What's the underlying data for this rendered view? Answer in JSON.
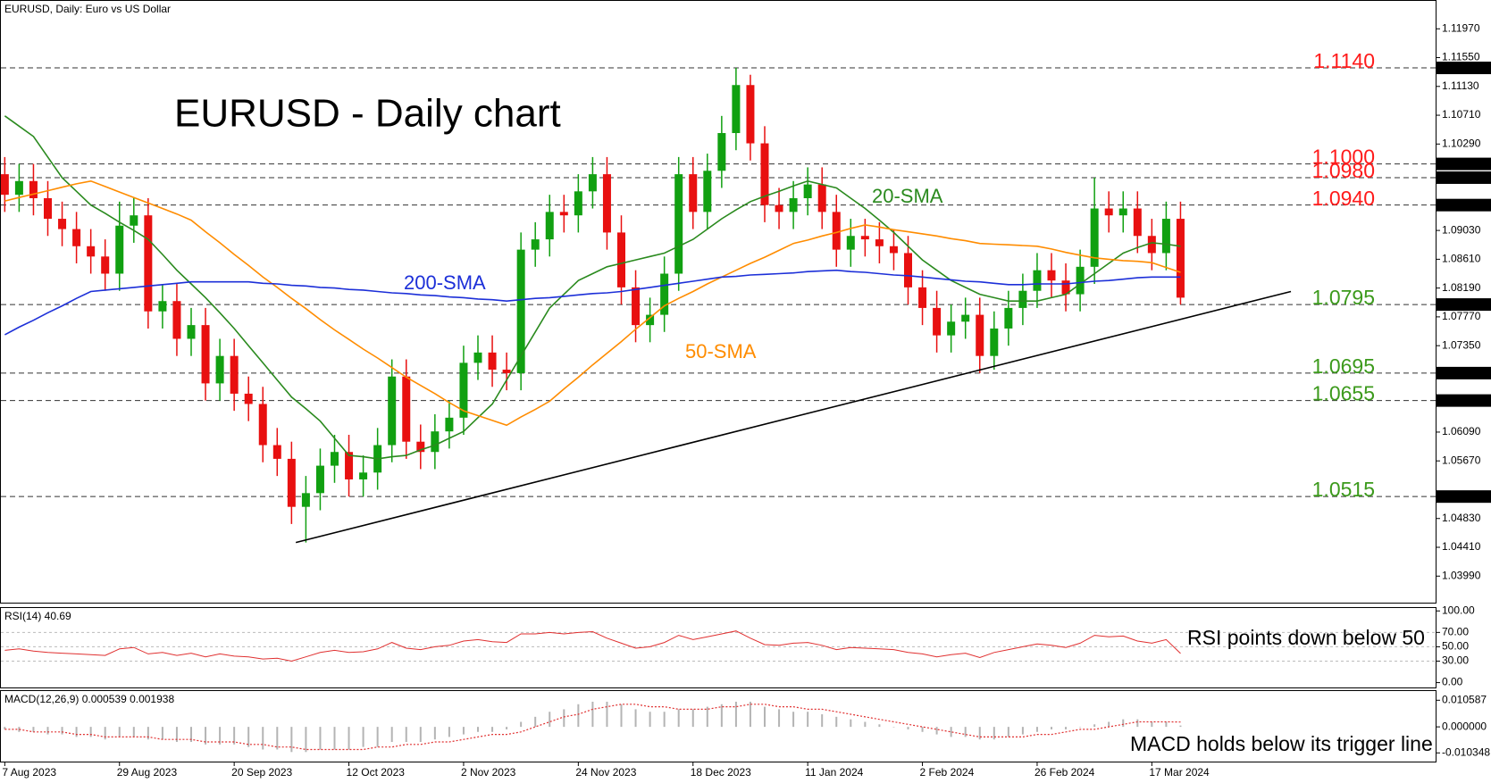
{
  "chart_data": {
    "type": "candlestick",
    "title": "EURUSD, Daily:  Euro vs US Dollar",
    "headline": "EURUSD - Daily chart",
    "categories": [
      "7 Aug 2023",
      null,
      null,
      null,
      null,
      null,
      null,
      null,
      "29 Aug 2023",
      null,
      null,
      null,
      null,
      null,
      null,
      null,
      "20 Sep 2023",
      null,
      null,
      null,
      null,
      null,
      null,
      null,
      "12 Oct 2023",
      null,
      null,
      null,
      null,
      null,
      null,
      null,
      "2 Nov 2023",
      null,
      null,
      null,
      null,
      null,
      null,
      null,
      "24 Nov 2023",
      null,
      null,
      null,
      null,
      null,
      null,
      null,
      "18 Dec 2023",
      null,
      null,
      null,
      null,
      null,
      null,
      null,
      "11 Jan 2024",
      null,
      null,
      null,
      null,
      null,
      null,
      null,
      "2 Feb 2024",
      null,
      null,
      null,
      null,
      null,
      null,
      null,
      "26 Feb 2024",
      null,
      null,
      null,
      null,
      null,
      null,
      null,
      "17 Mar 2024",
      null,
      null
    ],
    "open": [
      1.0985,
      1.0955,
      1.0975,
      1.095,
      1.092,
      1.0905,
      1.088,
      1.0865,
      1.084,
      1.091,
      1.0925,
      1.0785,
      1.08,
      1.0745,
      1.0765,
      1.068,
      1.072,
      1.0665,
      1.065,
      1.059,
      1.057,
      1.05,
      1.052,
      1.056,
      1.058,
      1.054,
      1.055,
      1.059,
      1.069,
      1.0595,
      1.058,
      1.061,
      1.063,
      1.071,
      1.0725,
      1.07,
      1.0695,
      1.0875,
      1.089,
      1.093,
      1.0925,
      1.096,
      1.0985,
      1.09,
      1.082,
      1.0765,
      1.078,
      1.084,
      1.0985,
      1.093,
      1.099,
      1.1045,
      1.1115,
      1.103,
      1.094,
      1.093,
      1.095,
      1.097,
      1.093,
      1.0875,
      1.0895,
      1.089,
      1.088,
      1.087,
      1.082,
      1.079,
      1.075,
      1.077,
      1.078,
      1.072,
      1.076,
      1.079,
      1.0815,
      1.0845,
      1.083,
      1.081,
      1.085,
      1.0935,
      1.0925,
      1.0935,
      1.0895,
      1.087,
      1.092
    ],
    "high": [
      1.101,
      1.1,
      1.1,
      1.0975,
      1.0945,
      1.093,
      1.0905,
      1.089,
      1.0945,
      1.095,
      1.095,
      1.0825,
      1.0825,
      1.079,
      1.079,
      1.0745,
      1.0745,
      1.069,
      1.0675,
      1.0615,
      1.0595,
      1.0545,
      1.0585,
      1.0605,
      1.0605,
      1.0575,
      1.0615,
      1.0715,
      1.0715,
      1.062,
      1.0635,
      1.0655,
      1.0735,
      1.075,
      1.075,
      1.0725,
      1.09,
      1.0915,
      1.0955,
      1.0955,
      1.0985,
      1.101,
      1.101,
      1.0925,
      1.0845,
      1.0805,
      1.0865,
      1.101,
      1.101,
      1.1015,
      1.107,
      1.114,
      1.113,
      1.1055,
      1.0965,
      1.0975,
      1.0995,
      1.0995,
      1.0955,
      1.092,
      1.092,
      1.0915,
      1.0905,
      1.0895,
      1.0845,
      1.0815,
      1.0795,
      1.0805,
      1.0805,
      1.0785,
      1.0815,
      1.084,
      1.087,
      1.087,
      1.0855,
      1.0875,
      1.098,
      1.096,
      1.096,
      1.096,
      1.092,
      1.0945,
      1.0945
    ],
    "low": [
      1.093,
      1.093,
      1.0925,
      1.0895,
      1.088,
      1.0855,
      1.084,
      1.0815,
      1.0815,
      1.0885,
      1.076,
      1.076,
      1.072,
      1.072,
      1.0655,
      1.0655,
      1.064,
      1.0625,
      1.0565,
      1.0545,
      1.0475,
      1.0448,
      1.0495,
      1.0535,
      1.0515,
      1.0515,
      1.0525,
      1.0565,
      1.057,
      1.0555,
      1.0555,
      1.0585,
      1.0605,
      1.0685,
      1.0675,
      1.067,
      1.067,
      1.085,
      1.0865,
      1.09,
      1.09,
      1.0935,
      1.0875,
      1.0795,
      1.074,
      1.074,
      1.0755,
      1.0815,
      1.0905,
      1.0905,
      1.0965,
      1.102,
      1.1005,
      1.0915,
      1.0905,
      1.0905,
      1.0925,
      1.0905,
      1.085,
      1.085,
      1.0865,
      1.0855,
      1.0845,
      1.0795,
      1.0765,
      1.0725,
      1.0725,
      1.0745,
      1.0695,
      1.07,
      1.0735,
      1.0765,
      1.079,
      1.0805,
      1.0785,
      1.0785,
      1.0825,
      1.09,
      1.09,
      1.087,
      1.0845,
      1.0845,
      1.0795
    ],
    "close": [
      1.0955,
      1.0975,
      1.095,
      1.092,
      1.0905,
      1.088,
      1.0865,
      1.084,
      1.091,
      1.0925,
      1.0785,
      1.08,
      1.0745,
      1.0765,
      1.068,
      1.072,
      1.0665,
      1.065,
      1.059,
      1.057,
      1.05,
      1.052,
      1.056,
      1.058,
      1.054,
      1.055,
      1.059,
      1.069,
      1.0595,
      1.058,
      1.061,
      1.063,
      1.071,
      1.0725,
      1.07,
      1.0695,
      1.0875,
      1.089,
      1.093,
      1.0925,
      1.096,
      1.0985,
      1.09,
      1.082,
      1.0765,
      1.078,
      1.084,
      1.0985,
      1.093,
      1.099,
      1.1045,
      1.1115,
      1.103,
      1.094,
      1.093,
      1.095,
      1.097,
      1.093,
      1.0875,
      1.0895,
      1.089,
      1.088,
      1.087,
      1.082,
      1.079,
      1.075,
      1.077,
      1.078,
      1.072,
      1.076,
      1.079,
      1.0815,
      1.0845,
      1.083,
      1.081,
      1.085,
      1.0935,
      1.0925,
      1.0935,
      1.0895,
      1.087,
      1.092,
      1.0805
    ],
    "up_color": "#11a011",
    "down_color": "#e81010",
    "ylim": [
      1.0359,
      1.1239
    ],
    "yticks": [
      {
        "value": 1.1197,
        "label": "1.11970"
      },
      {
        "value": 1.1155,
        "label": "1.11550"
      },
      {
        "value": 1.1113,
        "label": "1.11130"
      },
      {
        "value": 1.1071,
        "label": "1.10710"
      },
      {
        "value": 1.1029,
        "label": "1.10290"
      },
      {
        "value": 1.0903,
        "label": "1.09030"
      },
      {
        "value": 1.0861,
        "label": "1.08610"
      },
      {
        "value": 1.0819,
        "label": "1.08190"
      },
      {
        "value": 1.0777,
        "label": "1.07770"
      },
      {
        "value": 1.0735,
        "label": "1.07350"
      },
      {
        "value": 1.0609,
        "label": "1.06090"
      },
      {
        "value": 1.0567,
        "label": "1.05670"
      },
      {
        "value": 1.0483,
        "label": "1.04830"
      },
      {
        "value": 1.0441,
        "label": "1.04410"
      },
      {
        "value": 1.0399,
        "label": "1.03990"
      }
    ],
    "overlays": [
      {
        "name": "20-SMA",
        "color": "#2a8a1e",
        "values": [
          1.107,
          1.1055,
          1.104,
          1.101,
          1.098,
          1.096,
          1.094,
          1.0928,
          1.0915,
          1.0903,
          1.089,
          1.0868,
          1.0845,
          1.0825,
          1.0805,
          1.0783,
          1.076,
          1.0735,
          1.071,
          1.0685,
          1.066,
          1.0643,
          1.0625,
          1.06,
          1.0575,
          1.0573,
          1.057,
          1.0573,
          1.0575,
          1.0583,
          1.059,
          1.06,
          1.061,
          1.063,
          1.065,
          1.0685,
          1.072,
          1.0755,
          1.079,
          1.081,
          1.083,
          1.084,
          1.085,
          1.0855,
          1.086,
          1.0865,
          1.087,
          1.088,
          1.089,
          1.0905,
          1.092,
          1.0933,
          1.0945,
          1.0953,
          1.096,
          1.0968,
          1.0975,
          1.097,
          1.0965,
          1.095,
          1.0935,
          1.0918,
          1.09,
          1.088,
          1.086,
          1.0845,
          1.083,
          1.082,
          1.081,
          1.0805,
          1.08,
          1.08,
          1.08,
          1.0805,
          1.081,
          1.0825,
          1.084,
          1.0855,
          1.087,
          1.0878,
          1.0885,
          1.0883,
          1.088
        ]
      },
      {
        "name": "50-SMA",
        "color": "#ff8c00",
        "values": [
          1.0946,
          1.0951,
          1.0956,
          1.0961,
          1.0966,
          1.0971,
          1.0975,
          1.0967,
          1.0959,
          1.0951,
          1.0943,
          1.0935,
          1.0927,
          1.0918,
          1.0901,
          1.0885,
          1.0868,
          1.0852,
          1.0835,
          1.082,
          1.0804,
          1.0789,
          1.0773,
          1.0758,
          1.0744,
          1.073,
          1.0717,
          1.0703,
          1.0689,
          1.0677,
          1.0665,
          1.0652,
          1.064,
          1.0633,
          1.0626,
          1.0619,
          1.0631,
          1.0642,
          1.0654,
          1.0672,
          1.0689,
          1.0707,
          1.0724,
          1.0741,
          1.0759,
          1.0776,
          1.0793,
          1.0804,
          1.0814,
          1.0825,
          1.0835,
          1.0845,
          1.0855,
          1.0864,
          1.0874,
          1.0884,
          1.0889,
          1.0895,
          1.09,
          1.0906,
          1.0911,
          1.0908,
          1.0904,
          1.0901,
          1.0898,
          1.0895,
          1.0891,
          1.0888,
          1.0884,
          1.0883,
          1.0882,
          1.0881,
          1.088,
          1.0876,
          1.0871,
          1.0867,
          1.0863,
          1.0861,
          1.0859,
          1.0858,
          1.0856,
          1.0849,
          1.0842
        ]
      },
      {
        "name": "200-SMA",
        "color": "#1c2fd8",
        "values": [
          1.0751,
          1.0762,
          1.0772,
          1.0783,
          1.0793,
          1.0804,
          1.0814,
          1.0816,
          1.0818,
          1.082,
          1.0822,
          1.0824,
          1.0826,
          1.0828,
          1.0828,
          1.0828,
          1.0828,
          1.0828,
          1.0826,
          1.0825,
          1.0823,
          1.0822,
          1.082,
          1.0819,
          1.0817,
          1.0816,
          1.0814,
          1.0812,
          1.0811,
          1.0809,
          1.0808,
          1.0806,
          1.0805,
          1.0803,
          1.0802,
          1.08,
          1.0802,
          1.0804,
          1.0805,
          1.0807,
          1.0809,
          1.0811,
          1.0812,
          1.0814,
          1.0817,
          1.082,
          1.0823,
          1.0826,
          1.0829,
          1.0832,
          1.0835,
          1.0836,
          1.0838,
          1.0839,
          1.084,
          1.0841,
          1.0843,
          1.0844,
          1.0845,
          1.0843,
          1.0842,
          1.084,
          1.0838,
          1.0837,
          1.0835,
          1.0833,
          1.0831,
          1.0829,
          1.0828,
          1.0826,
          1.0824,
          1.0824,
          1.0825,
          1.0825,
          1.0825,
          1.0827,
          1.0829,
          1.083,
          1.0832,
          1.0834,
          1.0835,
          1.0835,
          1.0835
        ]
      }
    ],
    "levels": [
      {
        "value": 1.114,
        "label": "1.1140",
        "axis_label": "1.11400",
        "color": "#ff1a1a"
      },
      {
        "value": 1.1,
        "label": "1.1000",
        "axis_label": "1.10000",
        "color": "#ff1a1a"
      },
      {
        "value": 1.098,
        "label": "1.0980",
        "axis_label": "1.09800",
        "color": "#ff1a1a"
      },
      {
        "value": 1.094,
        "label": "1.0940",
        "axis_label": "1.09400",
        "color": "#ff1a1a"
      },
      {
        "value": 1.0795,
        "label": "1.0795",
        "axis_label": "1.07950",
        "color": "#3c9a1c"
      },
      {
        "value": 1.0695,
        "label": "1.0695",
        "axis_label": "1.06950",
        "color": "#3c9a1c"
      },
      {
        "value": 1.0655,
        "label": "1.0655",
        "axis_label": "1.06550",
        "color": "#3c9a1c"
      },
      {
        "value": 1.0515,
        "label": "1.0515",
        "axis_label": "1.05150",
        "color": "#3c9a1c"
      }
    ],
    "trendline": {
      "x": [
        20.3,
        89.7
      ],
      "y": [
        1.0448,
        1.0814
      ],
      "color": "#000000"
    },
    "rsi": {
      "title": "RSI(14) 40.69",
      "note": "RSI points down below 50",
      "color": "#e03030",
      "ylim": [
        -8,
        105.3
      ],
      "yticks": [
        {
          "value": 100,
          "label": "100.00"
        },
        {
          "value": 70,
          "label": "70.00"
        },
        {
          "value": 50,
          "label": "50.00"
        },
        {
          "value": 30,
          "label": "30.00"
        },
        {
          "value": 0,
          "label": "0.00"
        }
      ],
      "values": [
        45,
        47,
        44,
        42,
        41,
        40,
        39,
        38,
        47,
        49,
        40,
        42,
        38,
        41,
        36,
        40,
        37,
        36,
        33,
        34,
        30,
        36,
        42,
        45,
        42,
        43,
        47,
        56,
        48,
        46,
        50,
        52,
        58,
        60,
        57,
        56,
        68,
        68,
        70,
        68,
        70,
        71,
        62,
        55,
        48,
        50,
        56,
        66,
        60,
        64,
        68,
        72,
        62,
        53,
        52,
        55,
        56,
        52,
        46,
        49,
        48,
        47,
        46,
        42,
        40,
        36,
        39,
        41,
        35,
        42,
        46,
        50,
        54,
        52,
        49,
        55,
        66,
        64,
        65,
        58,
        55,
        60,
        40.69
      ]
    },
    "macd": {
      "title": "MACD(12,26,9) 0.000539 0.001938",
      "note": "MACD holds below its trigger line",
      "histogram_color": "#b4b4b4",
      "signal_color": "#e03030",
      "ylim": [
        -0.0138,
        0.0146
      ],
      "yticks": [
        0.010587,
        {
          "value": 0,
          "label": "0.000000"
        },
        -0.010348
      ],
      "histogram": [
        -0.001,
        -0.002,
        -0.002,
        -0.003,
        -0.003,
        -0.004,
        -0.004,
        -0.005,
        -0.004,
        -0.004,
        -0.005,
        -0.005,
        -0.006,
        -0.006,
        -0.007,
        -0.007,
        -0.007,
        -0.008,
        -0.009,
        -0.009,
        -0.01,
        -0.01,
        -0.009,
        -0.009,
        -0.009,
        -0.008,
        -0.008,
        -0.006,
        -0.006,
        -0.006,
        -0.005,
        -0.004,
        -0.003,
        -0.002,
        -0.002,
        -0.001,
        0.002,
        0.004,
        0.006,
        0.007,
        0.009,
        0.01,
        0.01,
        0.009,
        0.007,
        0.006,
        0.006,
        0.007,
        0.007,
        0.008,
        0.009,
        0.01,
        0.01,
        0.008,
        0.007,
        0.006,
        0.006,
        0.005,
        0.004,
        0.003,
        0.002,
        0.001,
        0,
        -0.001,
        -0.002,
        -0.003,
        -0.004,
        -0.004,
        -0.005,
        -0.005,
        -0.004,
        -0.003,
        -0.002,
        -0.001,
        -0.001,
        0,
        0.001,
        0.002,
        0.003,
        0.003,
        0.002,
        0.002,
        0.000539
      ],
      "signal": [
        -0.001,
        -0.001,
        -0.002,
        -0.002,
        -0.002,
        -0.003,
        -0.003,
        -0.004,
        -0.004,
        -0.004,
        -0.004,
        -0.005,
        -0.005,
        -0.005,
        -0.006,
        -0.006,
        -0.006,
        -0.007,
        -0.007,
        -0.008,
        -0.008,
        -0.009,
        -0.009,
        -0.009,
        -0.009,
        -0.009,
        -0.008,
        -0.008,
        -0.007,
        -0.007,
        -0.006,
        -0.006,
        -0.005,
        -0.004,
        -0.003,
        -0.003,
        -0.002,
        0,
        0.002,
        0.004,
        0.005,
        0.007,
        0.008,
        0.009,
        0.009,
        0.008,
        0.008,
        0.007,
        0.007,
        0.007,
        0.008,
        0.008,
        0.009,
        0.009,
        0.008,
        0.008,
        0.007,
        0.007,
        0.006,
        0.005,
        0.004,
        0.003,
        0.002,
        0.001,
        0,
        -0.001,
        -0.002,
        -0.003,
        -0.004,
        -0.004,
        -0.004,
        -0.004,
        -0.003,
        -0.003,
        -0.002,
        -0.001,
        -0.001,
        0,
        0.001,
        0.002,
        0.002,
        0.002,
        0.001938
      ]
    }
  }
}
